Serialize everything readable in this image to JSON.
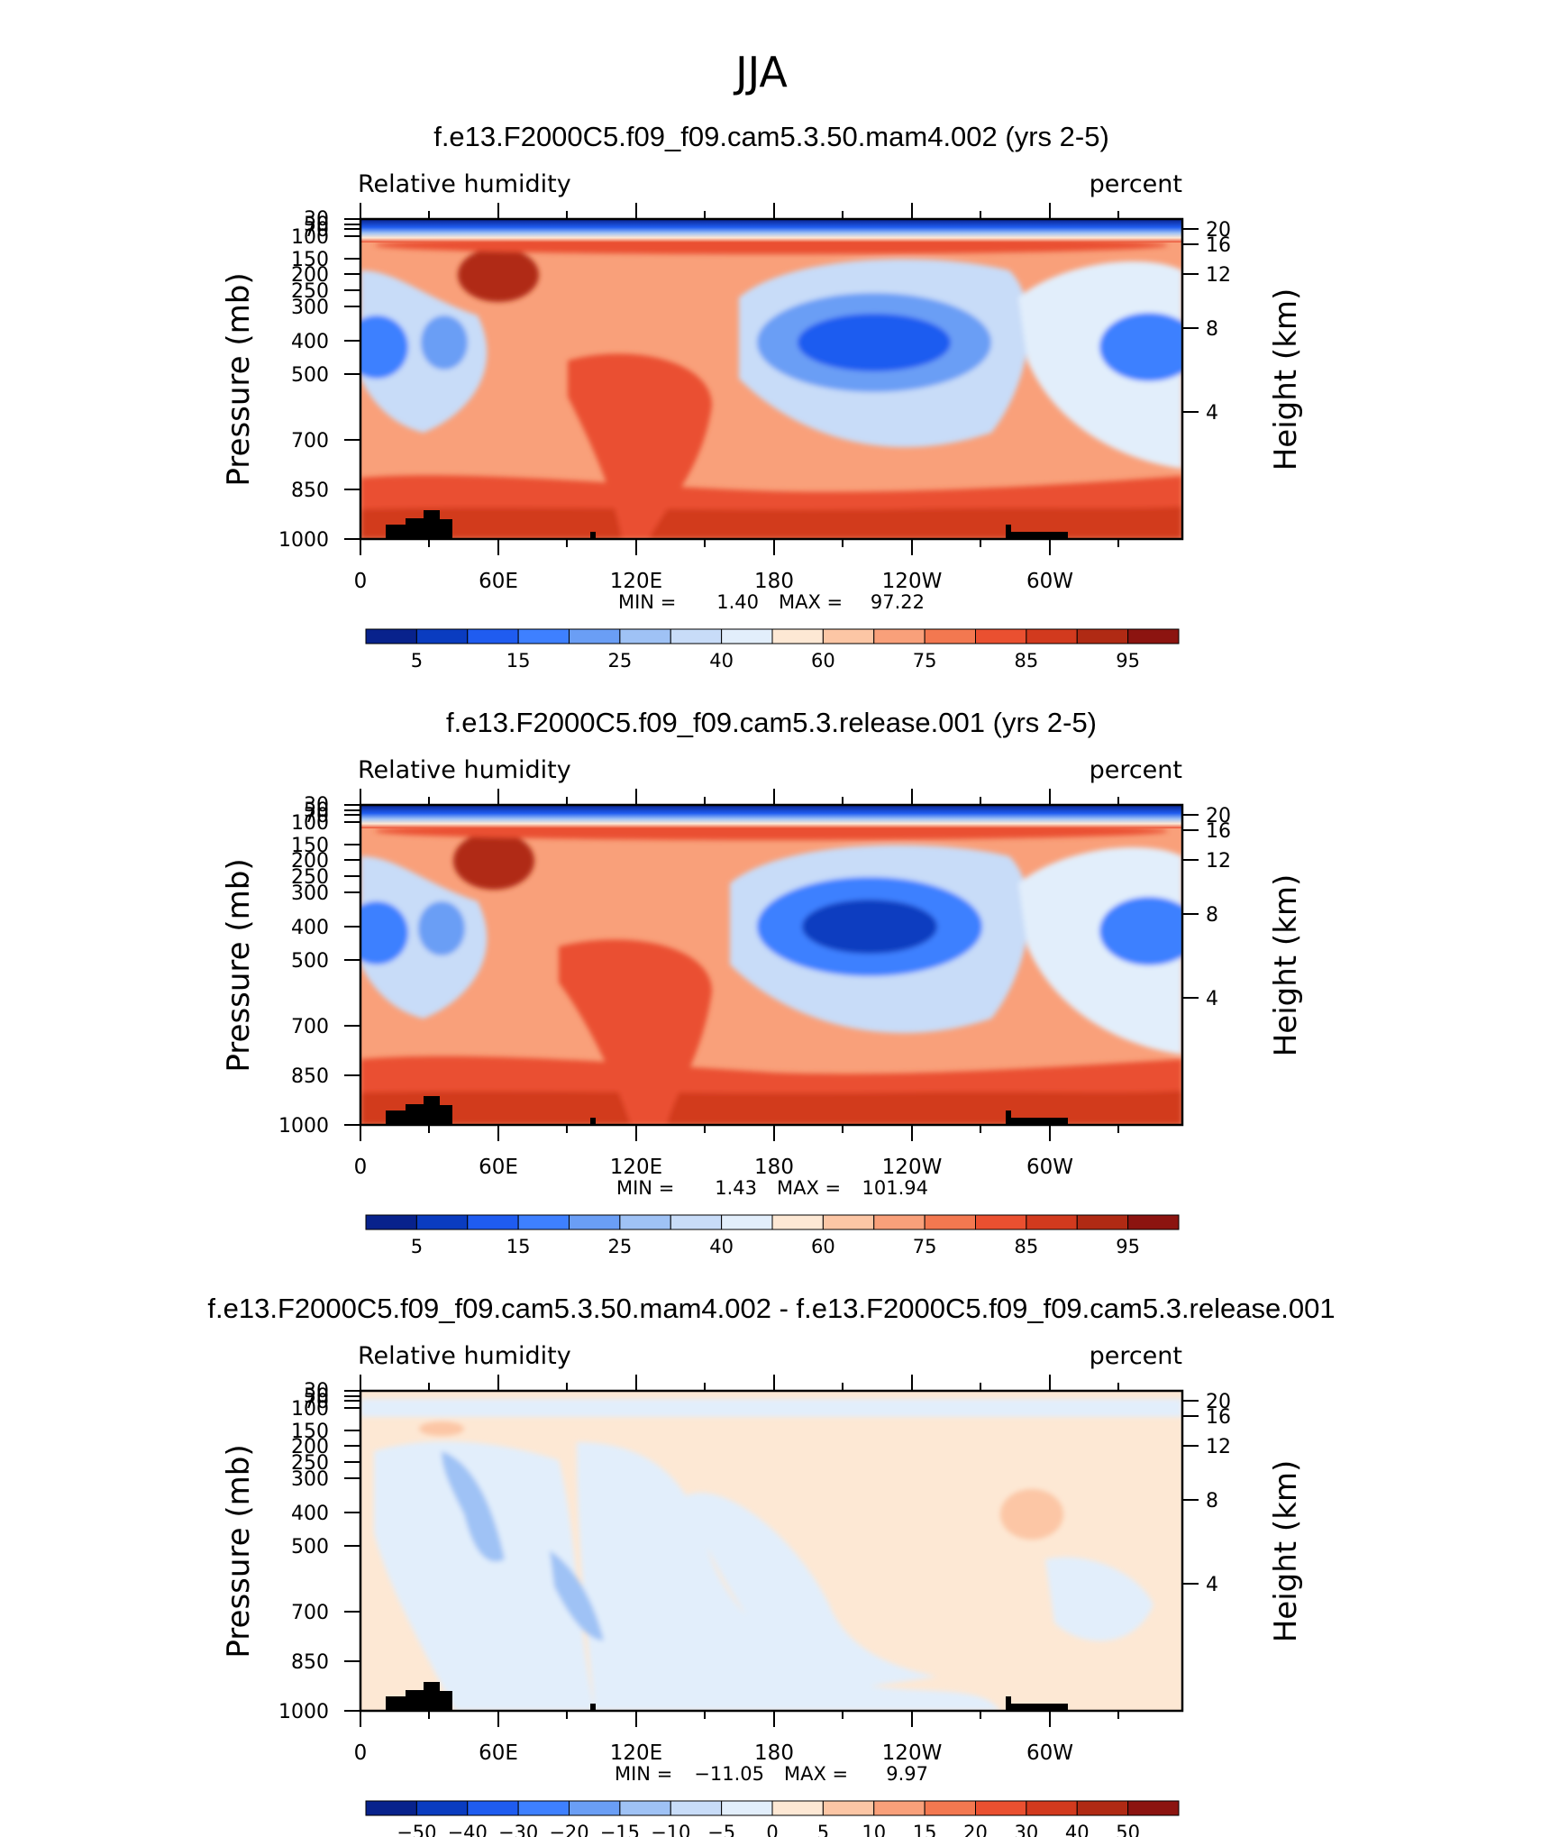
{
  "figure": {
    "title": "JJA"
  },
  "chart_data": [
    {
      "type": "heatmap",
      "title": "f.e13.F2000C5.f09_f09.cam5.3.50.mam4.002 (yrs 2-5)",
      "left_label": "Relative humidity",
      "right_label": "percent",
      "ylabel": "Pressure (mb)",
      "ylabel_right": "Height (km)",
      "x_ticks": [
        "0",
        "60E",
        "120E",
        "180",
        "120W",
        "60W"
      ],
      "y_ticks": [
        "30",
        "50",
        "70",
        "100",
        "150",
        "200",
        "250",
        "300",
        "400",
        "500",
        "700",
        "850",
        "1000"
      ],
      "y_ticks_right": [
        "20",
        "16",
        "12",
        "8",
        "4"
      ],
      "y_scale": "log",
      "ylim": [
        1000,
        30
      ],
      "stats": {
        "min_label": "MIN =",
        "min": "1.40",
        "max_label": "MAX =",
        "max": "97.22"
      },
      "colorbar": {
        "labels": [
          "5",
          "15",
          "25",
          "40",
          "60",
          "75",
          "85",
          "95"
        ],
        "colors": [
          "#08228c",
          "#0a3cc0",
          "#1f5cf0",
          "#3e80ff",
          "#6a9ef5",
          "#9fc2f5",
          "#c8dcf8",
          "#e2eefb",
          "#fde8d4",
          "#fcc6a5",
          "#f9a07a",
          "#f37850",
          "#ea5030",
          "#d23a1e",
          "#b02a14",
          "#8c1410"
        ]
      }
    },
    {
      "type": "heatmap",
      "title": "f.e13.F2000C5.f09_f09.cam5.3.release.001 (yrs 2-5)",
      "left_label": "Relative humidity",
      "right_label": "percent",
      "ylabel": "Pressure (mb)",
      "ylabel_right": "Height (km)",
      "x_ticks": [
        "0",
        "60E",
        "120E",
        "180",
        "120W",
        "60W"
      ],
      "y_ticks": [
        "30",
        "50",
        "70",
        "100",
        "150",
        "200",
        "250",
        "300",
        "400",
        "500",
        "700",
        "850",
        "1000"
      ],
      "y_ticks_right": [
        "20",
        "16",
        "12",
        "8",
        "4"
      ],
      "y_scale": "log",
      "ylim": [
        1000,
        30
      ],
      "stats": {
        "min_label": "MIN =",
        "min": "1.43",
        "max_label": "MAX =",
        "max": "101.94"
      },
      "colorbar": {
        "labels": [
          "5",
          "15",
          "25",
          "40",
          "60",
          "75",
          "85",
          "95"
        ],
        "colors": [
          "#08228c",
          "#0a3cc0",
          "#1f5cf0",
          "#3e80ff",
          "#6a9ef5",
          "#9fc2f5",
          "#c8dcf8",
          "#e2eefb",
          "#fde8d4",
          "#fcc6a5",
          "#f9a07a",
          "#f37850",
          "#ea5030",
          "#d23a1e",
          "#b02a14",
          "#8c1410"
        ]
      }
    },
    {
      "type": "heatmap",
      "title": "f.e13.F2000C5.f09_f09.cam5.3.50.mam4.002 - f.e13.F2000C5.f09_f09.cam5.3.release.001",
      "left_label": "Relative humidity",
      "right_label": "percent",
      "ylabel": "Pressure (mb)",
      "ylabel_right": "Height (km)",
      "x_ticks": [
        "0",
        "60E",
        "120E",
        "180",
        "120W",
        "60W"
      ],
      "y_ticks": [
        "30",
        "50",
        "70",
        "100",
        "150",
        "200",
        "250",
        "300",
        "400",
        "500",
        "700",
        "850",
        "1000"
      ],
      "y_ticks_right": [
        "20",
        "16",
        "12",
        "8",
        "4"
      ],
      "y_scale": "log",
      "ylim": [
        1000,
        30
      ],
      "stats": {
        "min_label": "MIN =",
        "min": "−11.05",
        "max_label": "MAX =",
        "max": "9.97"
      },
      "colorbar": {
        "labels": [
          "−50",
          "−40",
          "−30",
          "−20",
          "−15",
          "−10",
          "−5",
          "0",
          "5",
          "10",
          "15",
          "20",
          "30",
          "40",
          "50"
        ],
        "colors": [
          "#08228c",
          "#0a3cc0",
          "#1f5cf0",
          "#3e80ff",
          "#6a9ef5",
          "#9fc2f5",
          "#c8dcf8",
          "#e2eefb",
          "#fde8d4",
          "#fcc6a5",
          "#f9a07a",
          "#f37850",
          "#ea5030",
          "#d23a1e",
          "#b02a14",
          "#8c1410"
        ]
      }
    }
  ]
}
